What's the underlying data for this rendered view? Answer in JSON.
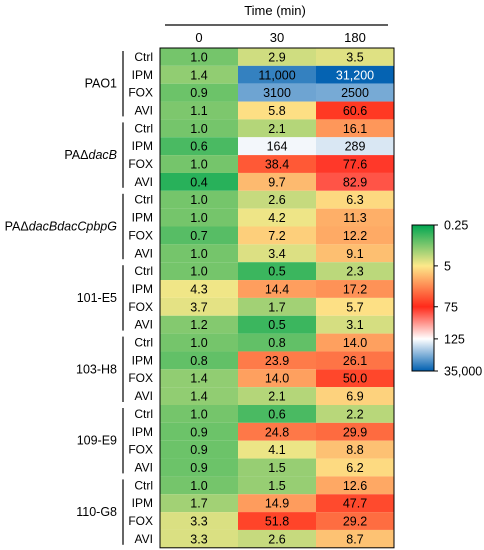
{
  "chart_data": {
    "type": "heatmap",
    "title": "Time (min)",
    "columns": [
      "0",
      "30",
      "180"
    ],
    "row_labels": [
      "Ctrl",
      "IPM",
      "FOX",
      "AVI"
    ],
    "groups": [
      {
        "name": "PAO1",
        "italic_suffix": "",
        "rows": [
          [
            "1.0",
            "2.9",
            "3.5"
          ],
          [
            "1.4",
            "11,000",
            "31,200"
          ],
          [
            "0.9",
            "3100",
            "2500"
          ],
          [
            "1.1",
            "5.8",
            "60.6"
          ]
        ]
      },
      {
        "name": "PAΔ",
        "italic_suffix": "dacB",
        "rows": [
          [
            "1.0",
            "2.1",
            "16.1"
          ],
          [
            "0.6",
            "164",
            "289"
          ],
          [
            "1.0",
            "38.4",
            "77.6"
          ],
          [
            "0.4",
            "9.7",
            "82.9"
          ]
        ]
      },
      {
        "name": "PAΔ",
        "italic_suffix": "dacBdacCpbpG",
        "rows": [
          [
            "1.0",
            "2.6",
            "6.3"
          ],
          [
            "1.0",
            "4.2",
            "11.3"
          ],
          [
            "0.7",
            "7.2",
            "12.2"
          ],
          [
            "1.0",
            "3.4",
            "9.1"
          ]
        ]
      },
      {
        "name": "101-E5",
        "italic_suffix": "",
        "rows": [
          [
            "1.0",
            "0.5",
            "2.3"
          ],
          [
            "4.3",
            "14.4",
            "17.2"
          ],
          [
            "3.7",
            "1.7",
            "5.7"
          ],
          [
            "1.2",
            "0.5",
            "3.1"
          ]
        ]
      },
      {
        "name": "103-H8",
        "italic_suffix": "",
        "rows": [
          [
            "1.0",
            "0.8",
            "14.0"
          ],
          [
            "0.8",
            "23.9",
            "26.1"
          ],
          [
            "1.4",
            "14.0",
            "50.0"
          ],
          [
            "1.4",
            "2.1",
            "6.9"
          ]
        ]
      },
      {
        "name": "109-E9",
        "italic_suffix": "",
        "rows": [
          [
            "1.0",
            "0.6",
            "2.2"
          ],
          [
            "0.9",
            "24.8",
            "29.9"
          ],
          [
            "0.9",
            "4.1",
            "8.8"
          ],
          [
            "0.9",
            "1.5",
            "6.2"
          ]
        ]
      },
      {
        "name": "110-G8",
        "italic_suffix": "",
        "rows": [
          [
            "1.0",
            "1.5",
            "12.6"
          ],
          [
            "1.7",
            "14.9",
            "47.7"
          ],
          [
            "3.3",
            "51.8",
            "29.2"
          ],
          [
            "3.3",
            "2.6",
            "8.7"
          ]
        ]
      }
    ],
    "color_scale": {
      "ticks": [
        "0.25",
        "5",
        "75",
        "125",
        "35,000"
      ],
      "stops": [
        "#00a651",
        "#fde98a",
        "#ff2a1a",
        "#ffffff",
        "#0060b0"
      ]
    }
  }
}
